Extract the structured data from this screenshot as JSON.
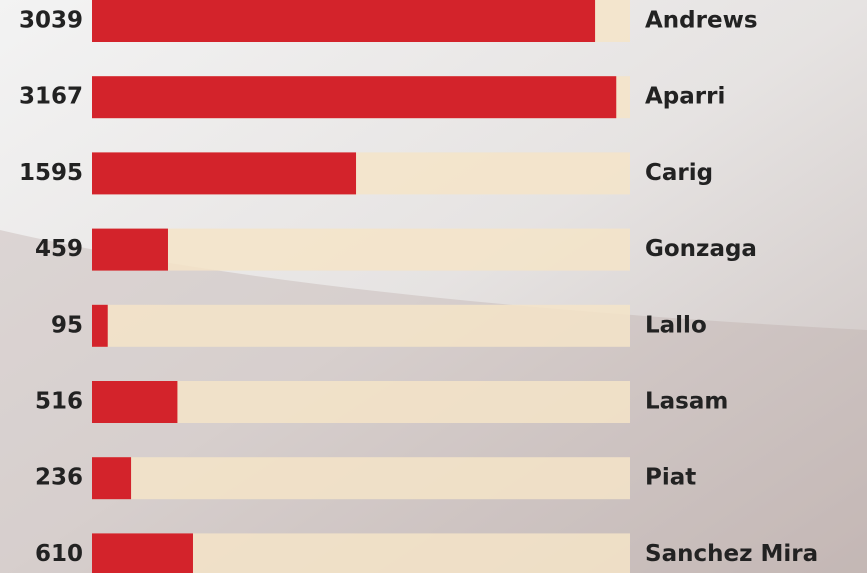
{
  "chart_data": {
    "type": "bar",
    "orientation": "horizontal",
    "categories": [
      "Andrews",
      "Aparri",
      "Carig",
      "Gonzaga",
      "Lallo",
      "Lasam",
      "Piat",
      "Sanchez Mira"
    ],
    "values": [
      3039,
      3167,
      1595,
      459,
      95,
      516,
      236,
      610
    ],
    "color": "#d3232b",
    "track_color": "#f4e4c8",
    "xlim": [
      0,
      3250
    ]
  }
}
